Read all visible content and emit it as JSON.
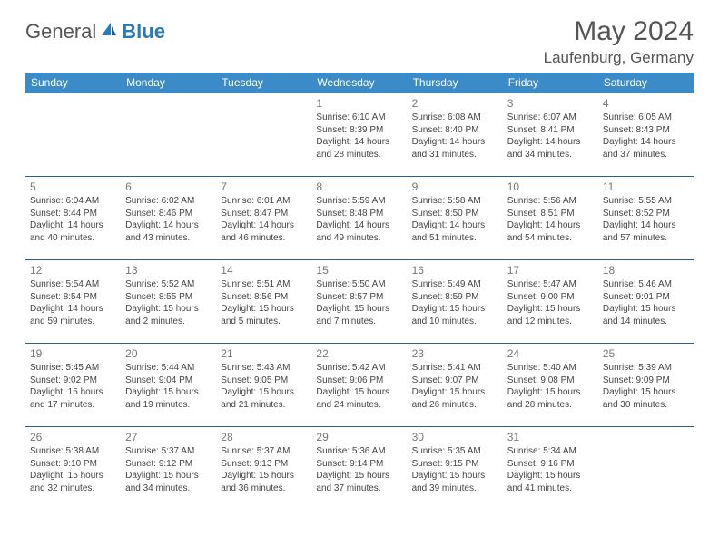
{
  "brand": {
    "partA": "General",
    "partB": "Blue"
  },
  "title": "May 2024",
  "location": "Laufenburg, Germany",
  "colors": {
    "headerBg": "#3b8bc9",
    "headerText": "#ffffff",
    "rowBorder": "#2a5f8a",
    "bodyText": "#444444",
    "dayNum": "#777777",
    "titleText": "#555555",
    "logoBlue": "#2a7ab9",
    "pageBg": "#ffffff"
  },
  "layout": {
    "pageWidth": 792,
    "pageHeight": 612,
    "columns": 7,
    "dayFontSize": 10,
    "headerFontSize": 12,
    "titleFontSize": 30,
    "locationFontSize": 17
  },
  "dayHeaders": [
    "Sunday",
    "Monday",
    "Tuesday",
    "Wednesday",
    "Thursday",
    "Friday",
    "Saturday"
  ],
  "weeks": [
    [
      null,
      null,
      null,
      {
        "n": "1",
        "sunrise": "6:10 AM",
        "sunset": "8:39 PM",
        "daylight": "14 hours and 28 minutes."
      },
      {
        "n": "2",
        "sunrise": "6:08 AM",
        "sunset": "8:40 PM",
        "daylight": "14 hours and 31 minutes."
      },
      {
        "n": "3",
        "sunrise": "6:07 AM",
        "sunset": "8:41 PM",
        "daylight": "14 hours and 34 minutes."
      },
      {
        "n": "4",
        "sunrise": "6:05 AM",
        "sunset": "8:43 PM",
        "daylight": "14 hours and 37 minutes."
      }
    ],
    [
      {
        "n": "5",
        "sunrise": "6:04 AM",
        "sunset": "8:44 PM",
        "daylight": "14 hours and 40 minutes."
      },
      {
        "n": "6",
        "sunrise": "6:02 AM",
        "sunset": "8:46 PM",
        "daylight": "14 hours and 43 minutes."
      },
      {
        "n": "7",
        "sunrise": "6:01 AM",
        "sunset": "8:47 PM",
        "daylight": "14 hours and 46 minutes."
      },
      {
        "n": "8",
        "sunrise": "5:59 AM",
        "sunset": "8:48 PM",
        "daylight": "14 hours and 49 minutes."
      },
      {
        "n": "9",
        "sunrise": "5:58 AM",
        "sunset": "8:50 PM",
        "daylight": "14 hours and 51 minutes."
      },
      {
        "n": "10",
        "sunrise": "5:56 AM",
        "sunset": "8:51 PM",
        "daylight": "14 hours and 54 minutes."
      },
      {
        "n": "11",
        "sunrise": "5:55 AM",
        "sunset": "8:52 PM",
        "daylight": "14 hours and 57 minutes."
      }
    ],
    [
      {
        "n": "12",
        "sunrise": "5:54 AM",
        "sunset": "8:54 PM",
        "daylight": "14 hours and 59 minutes."
      },
      {
        "n": "13",
        "sunrise": "5:52 AM",
        "sunset": "8:55 PM",
        "daylight": "15 hours and 2 minutes."
      },
      {
        "n": "14",
        "sunrise": "5:51 AM",
        "sunset": "8:56 PM",
        "daylight": "15 hours and 5 minutes."
      },
      {
        "n": "15",
        "sunrise": "5:50 AM",
        "sunset": "8:57 PM",
        "daylight": "15 hours and 7 minutes."
      },
      {
        "n": "16",
        "sunrise": "5:49 AM",
        "sunset": "8:59 PM",
        "daylight": "15 hours and 10 minutes."
      },
      {
        "n": "17",
        "sunrise": "5:47 AM",
        "sunset": "9:00 PM",
        "daylight": "15 hours and 12 minutes."
      },
      {
        "n": "18",
        "sunrise": "5:46 AM",
        "sunset": "9:01 PM",
        "daylight": "15 hours and 14 minutes."
      }
    ],
    [
      {
        "n": "19",
        "sunrise": "5:45 AM",
        "sunset": "9:02 PM",
        "daylight": "15 hours and 17 minutes."
      },
      {
        "n": "20",
        "sunrise": "5:44 AM",
        "sunset": "9:04 PM",
        "daylight": "15 hours and 19 minutes."
      },
      {
        "n": "21",
        "sunrise": "5:43 AM",
        "sunset": "9:05 PM",
        "daylight": "15 hours and 21 minutes."
      },
      {
        "n": "22",
        "sunrise": "5:42 AM",
        "sunset": "9:06 PM",
        "daylight": "15 hours and 24 minutes."
      },
      {
        "n": "23",
        "sunrise": "5:41 AM",
        "sunset": "9:07 PM",
        "daylight": "15 hours and 26 minutes."
      },
      {
        "n": "24",
        "sunrise": "5:40 AM",
        "sunset": "9:08 PM",
        "daylight": "15 hours and 28 minutes."
      },
      {
        "n": "25",
        "sunrise": "5:39 AM",
        "sunset": "9:09 PM",
        "daylight": "15 hours and 30 minutes."
      }
    ],
    [
      {
        "n": "26",
        "sunrise": "5:38 AM",
        "sunset": "9:10 PM",
        "daylight": "15 hours and 32 minutes."
      },
      {
        "n": "27",
        "sunrise": "5:37 AM",
        "sunset": "9:12 PM",
        "daylight": "15 hours and 34 minutes."
      },
      {
        "n": "28",
        "sunrise": "5:37 AM",
        "sunset": "9:13 PM",
        "daylight": "15 hours and 36 minutes."
      },
      {
        "n": "29",
        "sunrise": "5:36 AM",
        "sunset": "9:14 PM",
        "daylight": "15 hours and 37 minutes."
      },
      {
        "n": "30",
        "sunrise": "5:35 AM",
        "sunset": "9:15 PM",
        "daylight": "15 hours and 39 minutes."
      },
      {
        "n": "31",
        "sunrise": "5:34 AM",
        "sunset": "9:16 PM",
        "daylight": "15 hours and 41 minutes."
      },
      null
    ]
  ],
  "labels": {
    "sunrise": "Sunrise:",
    "sunset": "Sunset:",
    "daylight": "Daylight:"
  }
}
